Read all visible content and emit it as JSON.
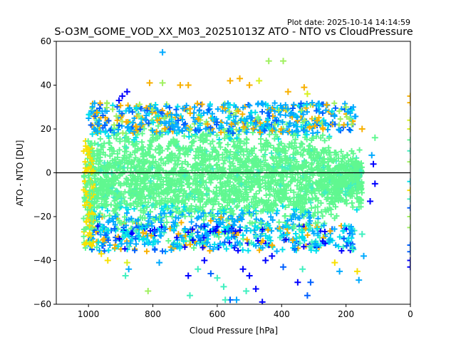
{
  "chart_data": {
    "type": "scatter",
    "title": "S-O3M_GOME_VOD_XX_M03_20251013Z ATO - NTO vs CloudPressure",
    "subtitle": "Plot date: 2025-10-14 14:14:59",
    "xlabel": "Cloud Pressure [hPa]",
    "ylabel": "ATO - NTO [DU]",
    "xlim": [
      1100,
      0
    ],
    "ylim": [
      -60,
      60
    ],
    "x_inverted": true,
    "xticks": [
      1000,
      800,
      600,
      400,
      200,
      0
    ],
    "xtick_labels": [
      "1000",
      "800",
      "600",
      "400",
      "200",
      "0"
    ],
    "yticks": [
      60,
      40,
      20,
      0,
      -20,
      -40,
      -60
    ],
    "ytick_labels": [
      "60",
      "40",
      "20",
      "0",
      "−20",
      "−40",
      "−60"
    ],
    "grid": false,
    "legend": "none",
    "marker": "+",
    "reference_line": {
      "y": 0,
      "color": "#000000"
    },
    "colormap": [
      "#0000ff",
      "#0060ff",
      "#00aaff",
      "#00e0ee",
      "#40f0c0",
      "#60f890",
      "#a0f060",
      "#d8f020",
      "#f8e000",
      "#f8b000"
    ],
    "dense_cloud": {
      "x_range": [
        1000,
        150
      ],
      "y_core_range": [
        -25,
        25
      ],
      "dominant_color": "#60f890",
      "description": "Dense cloud of points centered near 0 DU, spread roughly -35 to +30 DU between 1000 and 150 hPa"
    },
    "outliers": [
      {
        "x": 770,
        "y": 55,
        "c": "#00aaff"
      },
      {
        "x": 440,
        "y": 51,
        "c": "#a0f060"
      },
      {
        "x": 395,
        "y": 51,
        "c": "#a0f060"
      },
      {
        "x": 810,
        "y": 41,
        "c": "#f8b000"
      },
      {
        "x": 770,
        "y": 41,
        "c": "#a0f060"
      },
      {
        "x": 880,
        "y": 37,
        "c": "#0000ff"
      },
      {
        "x": 895,
        "y": 35,
        "c": "#0000ff"
      },
      {
        "x": 905,
        "y": 33,
        "c": "#0000ff"
      },
      {
        "x": 715,
        "y": 40,
        "c": "#f8b000"
      },
      {
        "x": 690,
        "y": 40,
        "c": "#f8b000"
      },
      {
        "x": 530,
        "y": 43,
        "c": "#f8b000"
      },
      {
        "x": 560,
        "y": 42,
        "c": "#f8b000"
      },
      {
        "x": 500,
        "y": 40,
        "c": "#f8b000"
      },
      {
        "x": 470,
        "y": 42,
        "c": "#d8f020"
      },
      {
        "x": 330,
        "y": 39,
        "c": "#f8b000"
      },
      {
        "x": 380,
        "y": 37,
        "c": "#f8b000"
      },
      {
        "x": 320,
        "y": 36,
        "c": "#d8f020"
      },
      {
        "x": 260,
        "y": 31,
        "c": "#f8b000"
      },
      {
        "x": 200,
        "y": 30,
        "c": "#a0f060"
      },
      {
        "x": 150,
        "y": 20,
        "c": "#f8b000"
      },
      {
        "x": 110,
        "y": 16,
        "c": "#60f890"
      },
      {
        "x": 120,
        "y": 8,
        "c": "#00aaff"
      },
      {
        "x": 115,
        "y": 4,
        "c": "#0000ff"
      },
      {
        "x": 110,
        "y": -5,
        "c": "#0000ff"
      },
      {
        "x": 125,
        "y": -13,
        "c": "#0000ff"
      },
      {
        "x": 150,
        "y": -28,
        "c": "#40f0c0"
      },
      {
        "x": 180,
        "y": -28,
        "c": "#00aaff"
      },
      {
        "x": 145,
        "y": -38,
        "c": "#00aaff"
      },
      {
        "x": 165,
        "y": -45,
        "c": "#f8e000"
      },
      {
        "x": 160,
        "y": -49,
        "c": "#00aaff"
      },
      {
        "x": 180,
        "y": -35,
        "c": "#40f0c0"
      },
      {
        "x": 220,
        "y": -45,
        "c": "#00aaff"
      },
      {
        "x": 235,
        "y": -41,
        "c": "#f8e000"
      },
      {
        "x": 310,
        "y": -50,
        "c": "#0060ff"
      },
      {
        "x": 320,
        "y": -56,
        "c": "#0060ff"
      },
      {
        "x": 350,
        "y": -50,
        "c": "#0000ff"
      },
      {
        "x": 335,
        "y": -44,
        "c": "#40f0c0"
      },
      {
        "x": 395,
        "y": -43,
        "c": "#0060ff"
      },
      {
        "x": 430,
        "y": -38,
        "c": "#0000ff"
      },
      {
        "x": 450,
        "y": -40,
        "c": "#0000ff"
      },
      {
        "x": 460,
        "y": -59,
        "c": "#0000ff"
      },
      {
        "x": 480,
        "y": -53,
        "c": "#0000ff"
      },
      {
        "x": 500,
        "y": -47,
        "c": "#0000ff"
      },
      {
        "x": 520,
        "y": -44,
        "c": "#0000ff"
      },
      {
        "x": 540,
        "y": -58,
        "c": "#00aaff"
      },
      {
        "x": 560,
        "y": -58,
        "c": "#0060ff"
      },
      {
        "x": 575,
        "y": -58,
        "c": "#40f0c0"
      },
      {
        "x": 510,
        "y": -54,
        "c": "#40f0c0"
      },
      {
        "x": 580,
        "y": -52,
        "c": "#40f0c0"
      },
      {
        "x": 600,
        "y": -48,
        "c": "#40f0c0"
      },
      {
        "x": 620,
        "y": -46,
        "c": "#0060ff"
      },
      {
        "x": 640,
        "y": -40,
        "c": "#0000ff"
      },
      {
        "x": 660,
        "y": -44,
        "c": "#40f0c0"
      },
      {
        "x": 690,
        "y": -47,
        "c": "#0000ff"
      },
      {
        "x": 685,
        "y": -56,
        "c": "#40f0c0"
      },
      {
        "x": 780,
        "y": -41,
        "c": "#00aaff"
      },
      {
        "x": 815,
        "y": -54,
        "c": "#a0f060"
      },
      {
        "x": 880,
        "y": -41,
        "c": "#d8f020"
      },
      {
        "x": 875,
        "y": -44,
        "c": "#00aaff"
      },
      {
        "x": 885,
        "y": -47,
        "c": "#40f0c0"
      },
      {
        "x": 960,
        "y": -37,
        "c": "#f8e000"
      },
      {
        "x": 940,
        "y": -40,
        "c": "#f8e000"
      },
      {
        "x": 0,
        "y": 35,
        "c": "#f8b000"
      },
      {
        "x": 0,
        "y": 32,
        "c": "#f8b000"
      },
      {
        "x": 0,
        "y": 24,
        "c": "#d8f020"
      },
      {
        "x": 0,
        "y": 20,
        "c": "#d8f020"
      },
      {
        "x": 0,
        "y": 15,
        "c": "#60f890"
      },
      {
        "x": 0,
        "y": 10,
        "c": "#40f0c0"
      },
      {
        "x": 0,
        "y": 5,
        "c": "#a0f060"
      },
      {
        "x": 0,
        "y": -4,
        "c": "#00e0ee"
      },
      {
        "x": 0,
        "y": -8,
        "c": "#f8e000"
      },
      {
        "x": 0,
        "y": -12,
        "c": "#40f0c0"
      },
      {
        "x": 0,
        "y": -16,
        "c": "#0060ff"
      },
      {
        "x": 0,
        "y": -20,
        "c": "#a0f060"
      },
      {
        "x": 0,
        "y": -25,
        "c": "#a0f060"
      },
      {
        "x": 0,
        "y": -33,
        "c": "#0060ff"
      },
      {
        "x": 0,
        "y": -36,
        "c": "#0060ff"
      },
      {
        "x": 0,
        "y": -40,
        "c": "#0000ff"
      },
      {
        "x": 0,
        "y": -43,
        "c": "#0000ff"
      }
    ]
  }
}
